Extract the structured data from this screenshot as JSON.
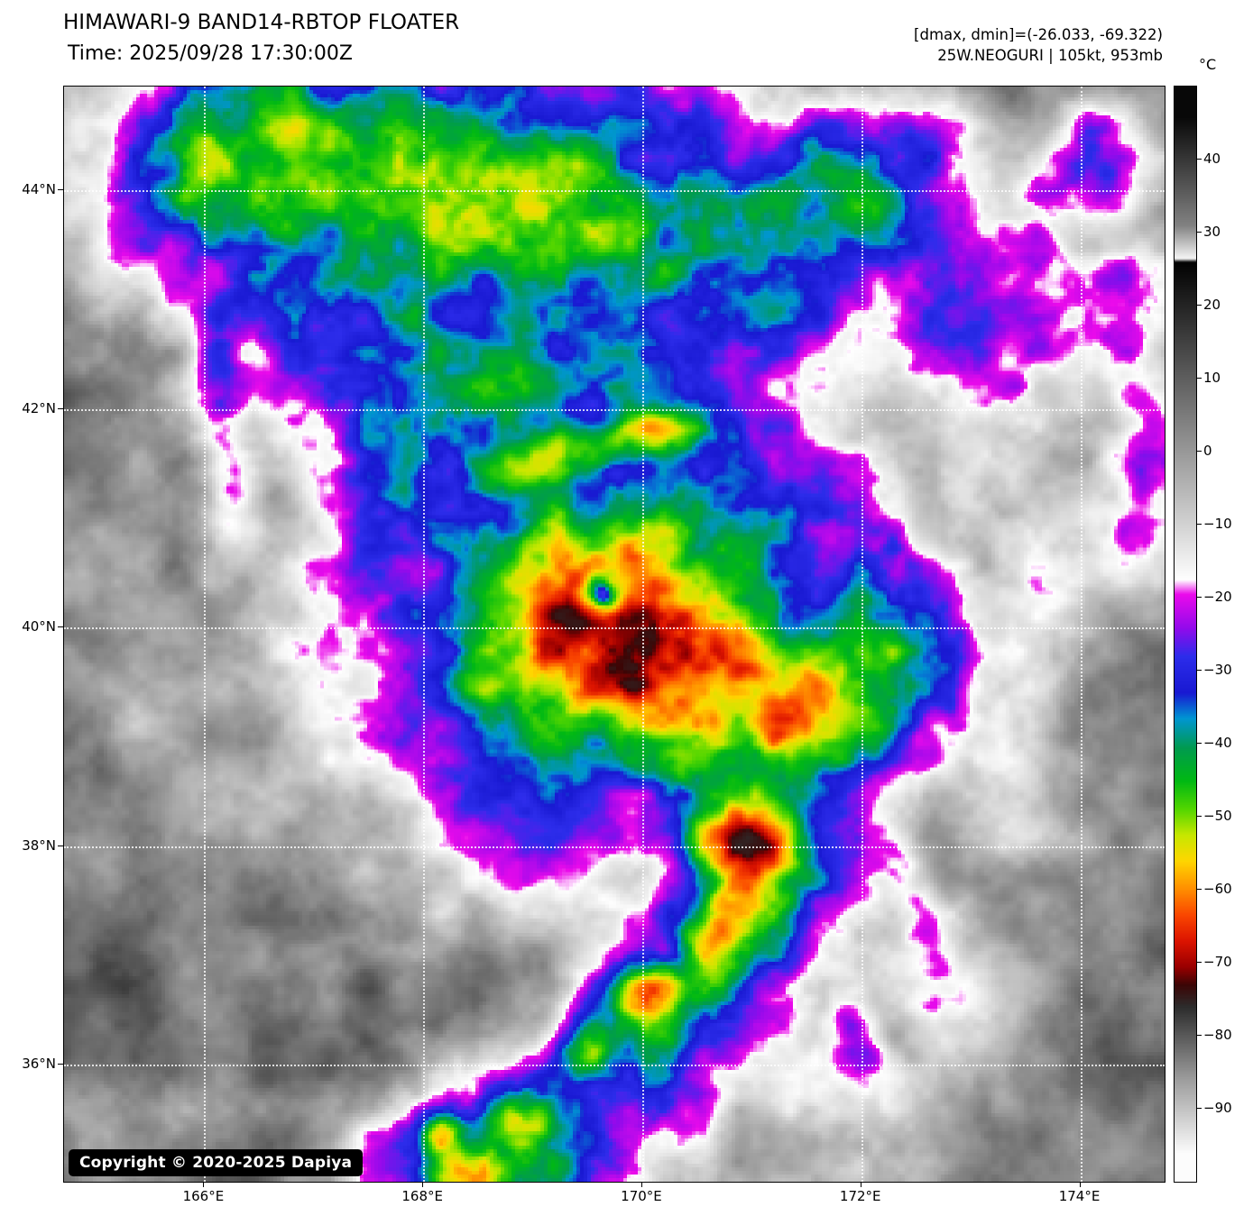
{
  "header": {
    "title": "HIMAWARI-9 BAND14-RBTOP FLOATER",
    "time": "Time: 2025/09/28 17:30:00Z",
    "dmax_dmin": "[dmax, dmin]=(-26.033, -69.322)",
    "storm_info": "25W.NEOGURI | 105kt, 953mb"
  },
  "map": {
    "copyright": "Copyright © 2020-2025 Dapiya"
  },
  "axes": {
    "lat_ticks": [
      {
        "label": "44°N",
        "value": 44
      },
      {
        "label": "42°N",
        "value": 42
      },
      {
        "label": "40°N",
        "value": 40
      },
      {
        "label": "38°N",
        "value": 38
      },
      {
        "label": "36°N",
        "value": 36
      }
    ],
    "lon_ticks": [
      {
        "label": "166°E",
        "value": 166
      },
      {
        "label": "168°E",
        "value": 168
      },
      {
        "label": "170°E",
        "value": 170
      },
      {
        "label": "172°E",
        "value": 172
      },
      {
        "label": "174°E",
        "value": 174
      }
    ]
  },
  "colorbar": {
    "unit": "°C",
    "range_celsius": [
      -100,
      50
    ],
    "ticks": [
      {
        "label": "40",
        "value": 40
      },
      {
        "label": "30",
        "value": 30
      },
      {
        "label": "20",
        "value": 20
      },
      {
        "label": "10",
        "value": 10
      },
      {
        "label": "0",
        "value": 0
      },
      {
        "label": "−10",
        "value": -10
      },
      {
        "label": "−20",
        "value": -20
      },
      {
        "label": "−30",
        "value": -30
      },
      {
        "label": "−40",
        "value": -40
      },
      {
        "label": "−50",
        "value": -50
      },
      {
        "label": "−60",
        "value": -60
      },
      {
        "label": "−70",
        "value": -70
      },
      {
        "label": "−80",
        "value": -80
      },
      {
        "label": "−90",
        "value": -90
      }
    ]
  }
}
